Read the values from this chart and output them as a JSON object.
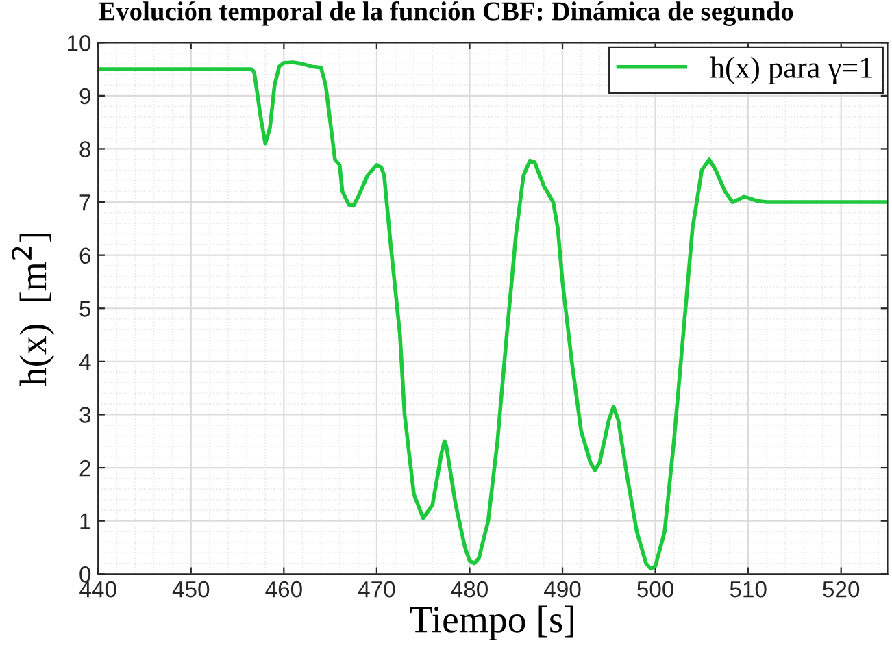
{
  "chart_data": {
    "type": "line",
    "title": "Evolución temporal de la función CBF: Dinámica de segundo",
    "xlabel": "Tiempo [s]",
    "ylabel": "h(x)  [m$^{2}$]",
    "xlim": [
      440,
      525
    ],
    "xticks": [
      440,
      450,
      460,
      470,
      480,
      490,
      500,
      510,
      520
    ],
    "ylim": [
      0,
      10
    ],
    "yticks": [
      0,
      1,
      2,
      3,
      4,
      5,
      6,
      7,
      8,
      9,
      10
    ],
    "grid": true,
    "legend": "top right",
    "line_style": "solid",
    "marker": "none",
    "series": [
      {
        "name": "h(x) para γ=1",
        "color": "#1ec83c",
        "x": [
          440,
          456.5,
          456.8,
          457.5,
          458,
          458.5,
          459,
          459.5,
          460,
          461,
          462,
          463,
          464,
          464.5,
          465,
          465.5,
          466,
          466.3,
          467,
          467.5,
          468,
          469,
          470,
          470.5,
          470.8,
          471.5,
          472.5,
          473,
          474,
          475,
          476,
          477,
          477.3,
          477.5,
          478.5,
          479.5,
          480,
          480.5,
          481,
          482,
          483,
          484,
          485,
          485.8,
          486.5,
          487,
          488,
          489,
          489.5,
          490,
          491,
          492,
          493,
          493.5,
          494,
          495,
          495.5,
          496,
          497,
          498,
          499,
          499.5,
          500,
          501,
          502,
          503,
          504,
          505,
          505.8,
          506.5,
          507.5,
          508.3,
          509,
          509.5,
          510,
          511,
          512,
          525
        ],
        "values": [
          9.5,
          9.5,
          9.45,
          8.6,
          8.1,
          8.4,
          9.2,
          9.55,
          9.62,
          9.63,
          9.6,
          9.55,
          9.53,
          9.2,
          8.5,
          7.8,
          7.7,
          7.2,
          6.95,
          6.93,
          7.1,
          7.5,
          7.7,
          7.65,
          7.5,
          6.2,
          4.5,
          3.0,
          1.5,
          1.05,
          1.3,
          2.3,
          2.5,
          2.4,
          1.3,
          0.5,
          0.25,
          0.2,
          0.3,
          1.0,
          2.5,
          4.5,
          6.4,
          7.5,
          7.78,
          7.75,
          7.3,
          7.0,
          6.5,
          5.5,
          4.0,
          2.7,
          2.1,
          1.95,
          2.1,
          2.9,
          3.15,
          2.9,
          1.8,
          0.8,
          0.2,
          0.1,
          0.15,
          0.8,
          2.5,
          4.5,
          6.5,
          7.6,
          7.8,
          7.6,
          7.2,
          7.0,
          7.05,
          7.1,
          7.08,
          7.02,
          7.0,
          7.0
        ]
      }
    ]
  }
}
